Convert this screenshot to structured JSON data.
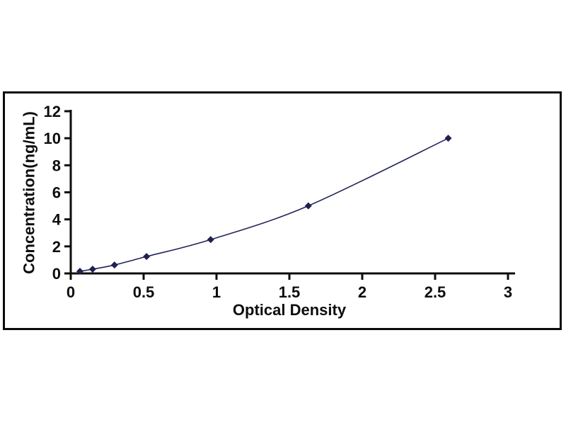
{
  "figure": {
    "background_color": "#ffffff",
    "border_color": "#0b0b0b"
  },
  "chart_data": {
    "type": "line",
    "title": "",
    "xlabel": "Optical Density",
    "ylabel": "Concentration(ng/mL)",
    "x": [
      0.063,
      0.15,
      0.3,
      0.52,
      0.96,
      1.63,
      2.59
    ],
    "y": [
      0.156,
      0.312,
      0.625,
      1.25,
      2.5,
      5,
      10
    ],
    "xlim": [
      0,
      3
    ],
    "ylim": [
      0,
      12
    ],
    "xticks": [
      0,
      0.5,
      1,
      1.5,
      2,
      2.5,
      3
    ],
    "xtick_labels": [
      "0",
      "0.5",
      "1",
      "1.5",
      "2",
      "2.5",
      "3"
    ],
    "yticks": [
      0,
      2,
      4,
      6,
      8,
      10,
      12
    ],
    "ytick_labels": [
      "0",
      "2",
      "4",
      "6",
      "8",
      "10",
      "12"
    ],
    "grid": false,
    "legend": null,
    "marker_shape": "diamond",
    "marker_color": "#1e2050",
    "line_color": "#23255a",
    "axis_color": "#0d0d0d",
    "tick_label_color": "#0d0d0d"
  }
}
